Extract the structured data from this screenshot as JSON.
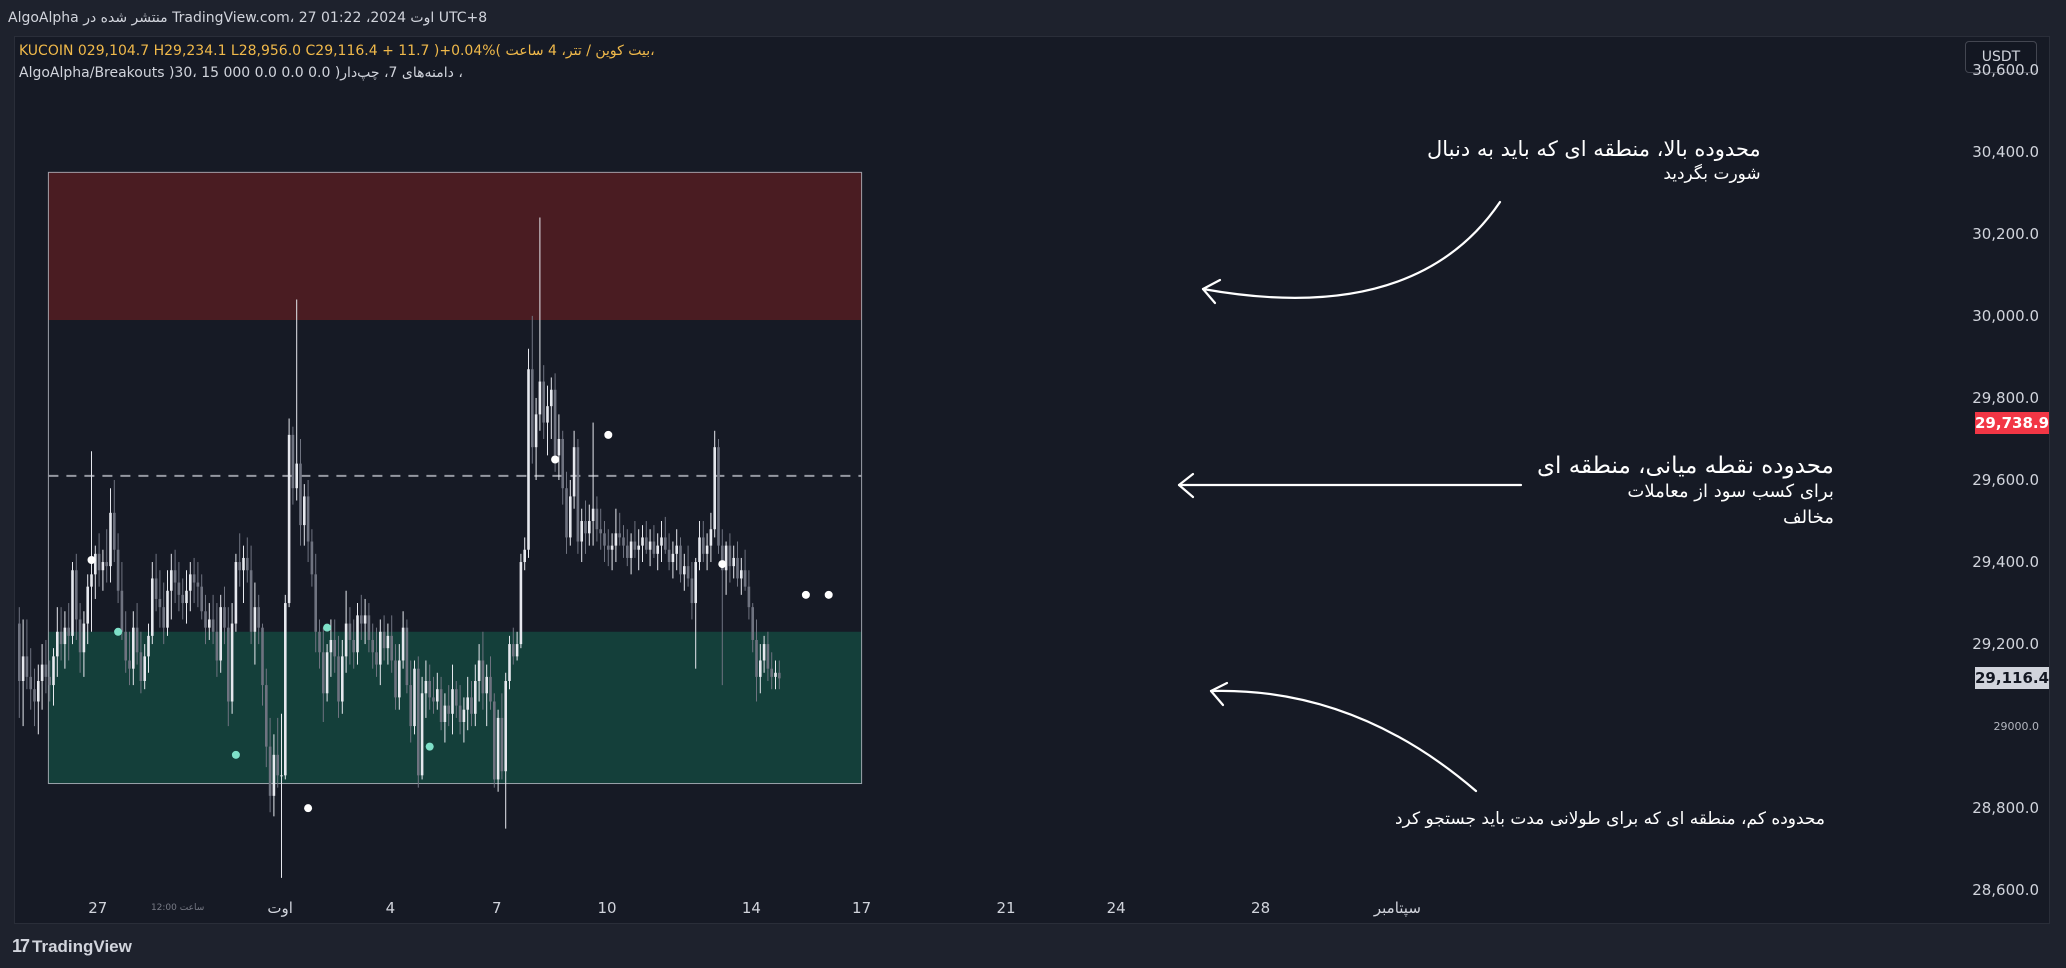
{
  "header": {
    "published": "AlgoAlpha منتشر شده در TradingView.com، 27 اوت 2024، 01:22 UTC+8"
  },
  "legend": {
    "ohlc_line": "KUCOIN 029,104.7 H29,234.1 L28,956.0 C29,116.4 + 11.7 )+0.04%( بیت کوین / تتر، 4 ساعت،",
    "indicator_line": "AlgoAlpha/Breakouts )30، 15 دامنه‌های 7، چپ‌دار( 0.0 0.0 0.0 000 ،"
  },
  "currency_button": "USDT",
  "annotations": {
    "top_zone": [
      "محدوده بالا، منطقه ای که باید به دنبال",
      "شورت بگردید"
    ],
    "mid_zone": [
      "محدوده نقطه میانی، منطقه ای",
      "برای کسب سود از معاملات",
      "مخالف"
    ],
    "bottom_zone": [
      "محدوده کم، منطقه ای که برای طولانی مدت باید جستجو کرد"
    ]
  },
  "footer": {
    "brand": "TradingView",
    "brand_mark": "17"
  },
  "colors": {
    "background": "#161a25",
    "up_candle": "#e6e8ee",
    "down_candle": "#6f7380",
    "top_zone": "#4a1c22",
    "bottom_zone": "#143f3a",
    "last_price_tag": "#f23645",
    "current_price_tag": "#d1d4dc"
  },
  "chart_data": {
    "type": "candlestick",
    "title": "",
    "xlabel": "",
    "ylabel": "",
    "ylim": [
      28520,
      30680
    ],
    "y_ticks": [
      "30,600.0",
      "30,400.0",
      "30,200.0",
      "30,000.0",
      "29,800.0",
      "29,600.0",
      "29,400.0",
      "29,200.0",
      "29000.0",
      "28,800.0",
      "28,600.0"
    ],
    "y_tick_values": [
      30600,
      30400,
      30200,
      30000,
      29800,
      29600,
      29400,
      29200,
      29000,
      28800,
      28600
    ],
    "x_ticks": [
      {
        "label": "27",
        "i": 21
      },
      {
        "label": "12:00 ساعت",
        "i": 42,
        "small": true
      },
      {
        "label": "اوت",
        "i": 69
      },
      {
        "label": "4",
        "i": 98
      },
      {
        "label": "7",
        "i": 126
      },
      {
        "label": "10",
        "i": 155
      },
      {
        "label": "14",
        "i": 193
      },
      {
        "label": "17",
        "i": 222
      },
      {
        "label": "21",
        "i": 260
      },
      {
        "label": "24",
        "i": 289
      },
      {
        "label": "28",
        "i": 327
      },
      {
        "label": "سپتامبر",
        "i": 363
      }
    ],
    "last_price": "29,738.9",
    "last_price_value": 29738.9,
    "current_price": "29,116.4",
    "current_price_value": 29116.4,
    "zones": {
      "top": {
        "from": 29990,
        "to": 30350
      },
      "bottom": {
        "from": 28860,
        "to": 29230
      },
      "midline": 29610,
      "start_index": 8,
      "end_index": 222
    },
    "candles": [
      [
        29250,
        29290,
        29020,
        29110
      ],
      [
        29110,
        29260,
        29000,
        29170
      ],
      [
        29170,
        29260,
        29090,
        29120
      ],
      [
        29120,
        29190,
        29040,
        29090
      ],
      [
        29090,
        29140,
        29000,
        29060
      ],
      [
        29060,
        29150,
        28980,
        29110
      ],
      [
        29110,
        29200,
        29040,
        29150
      ],
      [
        29150,
        29210,
        29080,
        29120
      ],
      [
        29120,
        29160,
        29060,
        29100
      ],
      [
        29100,
        29190,
        29050,
        29170
      ],
      [
        29170,
        29290,
        29120,
        29230
      ],
      [
        29230,
        29290,
        29160,
        29200
      ],
      [
        29200,
        29280,
        29140,
        29240
      ],
      [
        29240,
        29300,
        29160,
        29220
      ],
      [
        29220,
        29400,
        29200,
        29380
      ],
      [
        29380,
        29420,
        29210,
        29260
      ],
      [
        29260,
        29300,
        29130,
        29180
      ],
      [
        29180,
        29280,
        29120,
        29250
      ],
      [
        29250,
        29370,
        29200,
        29340
      ],
      [
        29340,
        29670,
        29230,
        29370
      ],
      [
        29370,
        29440,
        29310,
        29420
      ],
      [
        29420,
        29470,
        29340,
        29380
      ],
      [
        29380,
        29430,
        29330,
        29400
      ],
      [
        29400,
        29480,
        29350,
        29390
      ],
      [
        29390,
        29580,
        29350,
        29520
      ],
      [
        29520,
        29600,
        29400,
        29430
      ],
      [
        29430,
        29470,
        29300,
        29330
      ],
      [
        29330,
        29400,
        29210,
        29230
      ],
      [
        29230,
        29280,
        29130,
        29160
      ],
      [
        29160,
        29230,
        29100,
        29140
      ],
      [
        29140,
        29280,
        29100,
        29240
      ],
      [
        29240,
        29300,
        29150,
        29180
      ],
      [
        29180,
        29230,
        29080,
        29110
      ],
      [
        29110,
        29200,
        29090,
        29170
      ],
      [
        29170,
        29250,
        29130,
        29220
      ],
      [
        29220,
        29400,
        29200,
        29360
      ],
      [
        29360,
        29420,
        29280,
        29310
      ],
      [
        29310,
        29380,
        29240,
        29290
      ],
      [
        29290,
        29350,
        29200,
        29240
      ],
      [
        29240,
        29380,
        29220,
        29330
      ],
      [
        29330,
        29420,
        29260,
        29380
      ],
      [
        29380,
        29430,
        29300,
        29350
      ],
      [
        29350,
        29400,
        29280,
        29320
      ],
      [
        29320,
        29360,
        29260,
        29300
      ],
      [
        29300,
        29380,
        29250,
        29330
      ],
      [
        29330,
        29400,
        29280,
        29370
      ],
      [
        29370,
        29410,
        29300,
        29350
      ],
      [
        29350,
        29400,
        29290,
        29340
      ],
      [
        29340,
        29370,
        29260,
        29280
      ],
      [
        29280,
        29320,
        29200,
        29240
      ],
      [
        29240,
        29300,
        29210,
        29260
      ],
      [
        29260,
        29320,
        29200,
        29230
      ],
      [
        29230,
        29300,
        29120,
        29160
      ],
      [
        29160,
        29320,
        29130,
        29290
      ],
      [
        29290,
        29340,
        29200,
        29240
      ],
      [
        29240,
        29290,
        29000,
        29060
      ],
      [
        29060,
        29300,
        29030,
        29250
      ],
      [
        29250,
        29420,
        29230,
        29400
      ],
      [
        29400,
        29470,
        29340,
        29380
      ],
      [
        29380,
        29440,
        29300,
        29410
      ],
      [
        29410,
        29460,
        29350,
        29380
      ],
      [
        29380,
        29440,
        29200,
        29230
      ],
      [
        29230,
        29350,
        29150,
        29290
      ],
      [
        29290,
        29320,
        29200,
        29240
      ],
      [
        29240,
        29250,
        29050,
        29100
      ],
      [
        29100,
        29140,
        28900,
        28950
      ],
      [
        28950,
        29020,
        28790,
        28830
      ],
      [
        28830,
        28980,
        28780,
        28930
      ],
      [
        28930,
        29020,
        28850,
        28880
      ],
      [
        28880,
        29030,
        28630,
        28880
      ],
      [
        28880,
        29320,
        28870,
        29300
      ],
      [
        29300,
        29750,
        29290,
        29710
      ],
      [
        29710,
        29730,
        29540,
        29580
      ],
      [
        29580,
        30040,
        29550,
        29640
      ],
      [
        29640,
        29700,
        29440,
        29490
      ],
      [
        29490,
        29590,
        29440,
        29560
      ],
      [
        29560,
        29600,
        29400,
        29450
      ],
      [
        29450,
        29480,
        29340,
        29370
      ],
      [
        29370,
        29420,
        29180,
        29230
      ],
      [
        29230,
        29260,
        29140,
        29180
      ],
      [
        29180,
        29240,
        29010,
        29080
      ],
      [
        29080,
        29200,
        29060,
        29180
      ],
      [
        29180,
        29260,
        29120,
        29210
      ],
      [
        29210,
        29260,
        29130,
        29170
      ],
      [
        29170,
        29220,
        29020,
        29060
      ],
      [
        29060,
        29210,
        29030,
        29170
      ],
      [
        29170,
        29330,
        29130,
        29250
      ],
      [
        29250,
        29290,
        29150,
        29210
      ],
      [
        29210,
        29260,
        29140,
        29180
      ],
      [
        29180,
        29300,
        29150,
        29270
      ],
      [
        29270,
        29320,
        29210,
        29250
      ],
      [
        29250,
        29310,
        29200,
        29270
      ],
      [
        29270,
        29300,
        29180,
        29210
      ],
      [
        29210,
        29250,
        29140,
        29180
      ],
      [
        29180,
        29240,
        29120,
        29150
      ],
      [
        29150,
        29260,
        29100,
        29230
      ],
      [
        29230,
        29270,
        29160,
        29190
      ],
      [
        29190,
        29250,
        29150,
        29220
      ],
      [
        29220,
        29270,
        29130,
        29160
      ],
      [
        29160,
        29200,
        29040,
        29070
      ],
      [
        29070,
        29200,
        29040,
        29160
      ],
      [
        29160,
        29280,
        29140,
        29240
      ],
      [
        29240,
        29260,
        29080,
        29100
      ],
      [
        29100,
        29160,
        28960,
        29000
      ],
      [
        29000,
        29160,
        28980,
        29140
      ],
      [
        29140,
        29170,
        28850,
        28880
      ],
      [
        28880,
        29120,
        28870,
        29080
      ],
      [
        29080,
        29160,
        29020,
        29110
      ],
      [
        29110,
        29150,
        29040,
        29070
      ],
      [
        29070,
        29120,
        29030,
        29060
      ],
      [
        29060,
        29130,
        29040,
        29090
      ],
      [
        29090,
        29120,
        28990,
        29010
      ],
      [
        29010,
        29080,
        28960,
        29050
      ],
      [
        29050,
        29100,
        29000,
        29030
      ],
      [
        29030,
        29150,
        28980,
        29090
      ],
      [
        29090,
        29110,
        29020,
        29050
      ],
      [
        29050,
        29100,
        28980,
        29010
      ],
      [
        29010,
        29070,
        28960,
        29040
      ],
      [
        29040,
        29120,
        28990,
        29070
      ],
      [
        29070,
        29110,
        29000,
        29030
      ],
      [
        29030,
        29150,
        29000,
        29110
      ],
      [
        29110,
        29200,
        29060,
        29160
      ],
      [
        29160,
        29230,
        29040,
        29080
      ],
      [
        29080,
        29150,
        29000,
        29120
      ],
      [
        29120,
        29170,
        29040,
        29060
      ],
      [
        29060,
        29080,
        28850,
        28870
      ],
      [
        28870,
        29040,
        28840,
        29020
      ],
      [
        29020,
        29080,
        28870,
        28890
      ],
      [
        28890,
        29130,
        28750,
        29110
      ],
      [
        29110,
        29220,
        29090,
        29200
      ],
      [
        29200,
        29240,
        29150,
        29170
      ],
      [
        29170,
        29230,
        29160,
        29200
      ],
      [
        29200,
        29420,
        29190,
        29400
      ],
      [
        29400,
        29460,
        29380,
        29430
      ],
      [
        29430,
        29920,
        29410,
        29870
      ],
      [
        29870,
        30000,
        29640,
        29680
      ],
      [
        29680,
        29800,
        29600,
        29760
      ],
      [
        29760,
        30240,
        29720,
        29840
      ],
      [
        29840,
        29880,
        29700,
        29740
      ],
      [
        29740,
        29830,
        29660,
        29780
      ],
      [
        29780,
        29850,
        29700,
        29820
      ],
      [
        29820,
        29860,
        29620,
        29660
      ],
      [
        29660,
        29760,
        29600,
        29700
      ],
      [
        29700,
        29720,
        29540,
        29580
      ],
      [
        29580,
        29620,
        29420,
        29460
      ],
      [
        29460,
        29600,
        29440,
        29560
      ],
      [
        29560,
        29720,
        29530,
        29680
      ],
      [
        29680,
        29700,
        29420,
        29450
      ],
      [
        29450,
        29530,
        29400,
        29500
      ],
      [
        29500,
        29550,
        29420,
        29470
      ],
      [
        29470,
        29540,
        29440,
        29500
      ],
      [
        29500,
        29740,
        29440,
        29530
      ],
      [
        29530,
        29560,
        29450,
        29480
      ],
      [
        29480,
        29530,
        29430,
        29470
      ],
      [
        29470,
        29500,
        29400,
        29440
      ],
      [
        29440,
        29480,
        29390,
        29430
      ],
      [
        29430,
        29470,
        29380,
        29440
      ],
      [
        29440,
        29530,
        29400,
        29470
      ],
      [
        29470,
        29520,
        29440,
        29460
      ],
      [
        29460,
        29490,
        29410,
        29440
      ],
      [
        29440,
        29480,
        29390,
        29410
      ],
      [
        29410,
        29470,
        29370,
        29450
      ],
      [
        29450,
        29500,
        29410,
        29430
      ],
      [
        29430,
        29480,
        29380,
        29440
      ],
      [
        29440,
        29490,
        29400,
        29460
      ],
      [
        29460,
        29500,
        29420,
        29430
      ],
      [
        29430,
        29480,
        29390,
        29450
      ],
      [
        29450,
        29490,
        29410,
        29420
      ],
      [
        29420,
        29470,
        29380,
        29440
      ],
      [
        29440,
        29500,
        29400,
        29460
      ],
      [
        29460,
        29510,
        29420,
        29430
      ],
      [
        29430,
        29470,
        29380,
        29400
      ],
      [
        29400,
        29450,
        29360,
        29420
      ],
      [
        29420,
        29480,
        29380,
        29440
      ],
      [
        29440,
        29460,
        29350,
        29370
      ],
      [
        29370,
        29420,
        29330,
        29390
      ],
      [
        29390,
        29440,
        29340,
        29360
      ],
      [
        29360,
        29400,
        29260,
        29300
      ],
      [
        29300,
        29410,
        29140,
        29400
      ],
      [
        29400,
        29500,
        29380,
        29460
      ],
      [
        29460,
        29500,
        29400,
        29420
      ],
      [
        29420,
        29470,
        29380,
        29440
      ],
      [
        29440,
        29520,
        29400,
        29480
      ],
      [
        29480,
        29720,
        29460,
        29680
      ],
      [
        29680,
        29700,
        29420,
        29440
      ],
      [
        29440,
        29480,
        29100,
        29380
      ],
      [
        29380,
        29450,
        29320,
        29440
      ],
      [
        29440,
        29470,
        29350,
        29390
      ],
      [
        29390,
        29440,
        29360,
        29410
      ],
      [
        29410,
        29450,
        29340,
        29360
      ],
      [
        29360,
        29410,
        29320,
        29380
      ],
      [
        29380,
        29430,
        29330,
        29340
      ],
      [
        29340,
        29380,
        29260,
        29290
      ],
      [
        29290,
        29300,
        29180,
        29210
      ],
      [
        29210,
        29260,
        29060,
        29120
      ],
      [
        29120,
        29200,
        29080,
        29160
      ],
      [
        29160,
        29220,
        29130,
        29200
      ],
      [
        29200,
        29230,
        29110,
        29140
      ],
      [
        29140,
        29180,
        29090,
        29120
      ],
      [
        29120,
        29160,
        29090,
        29130
      ],
      [
        29130,
        29160,
        29090,
        29116.4
      ]
    ],
    "signal_dots": [
      {
        "i": 19,
        "y": 29405,
        "color": "#ffffff"
      },
      {
        "i": 26,
        "y": 29230,
        "color": "#7ee0c8"
      },
      {
        "i": 57,
        "y": 28930,
        "color": "#7ee0c8"
      },
      {
        "i": 76,
        "y": 28800,
        "color": "#ffffff"
      },
      {
        "i": 81,
        "y": 29240,
        "color": "#7ee0c8"
      },
      {
        "i": 108,
        "y": 28950,
        "color": "#7ee0c8"
      },
      {
        "i": 141,
        "y": 29650,
        "color": "#ffffff"
      },
      {
        "i": 155,
        "y": 29710,
        "color": "#ffffff"
      },
      {
        "i": 185,
        "y": 29395,
        "color": "#ffffff"
      },
      {
        "i": 207,
        "y": 29320,
        "color": "#ffffff"
      },
      {
        "i": 213,
        "y": 29320,
        "color": "#ffffff"
      }
    ]
  }
}
